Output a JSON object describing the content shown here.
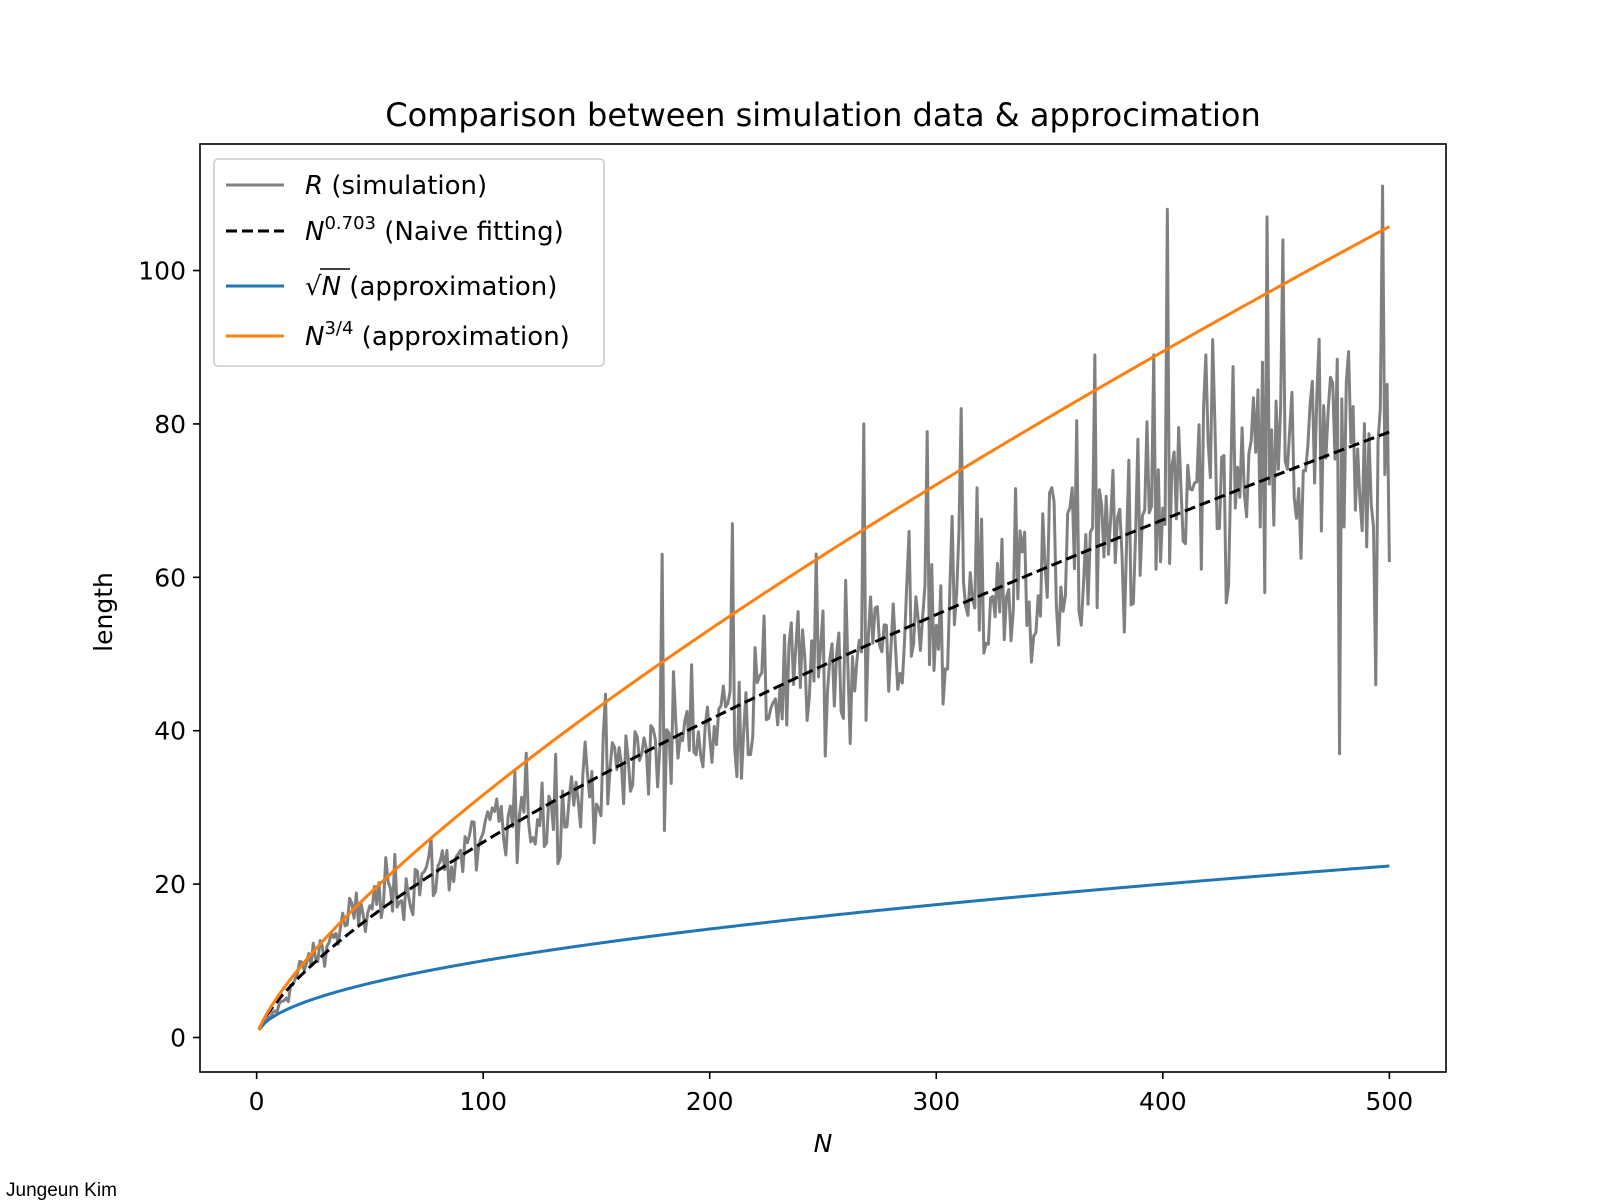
{
  "chart_data": {
    "type": "line",
    "title": "Comparison between simulation data & approcimation",
    "xlabel": "N",
    "ylabel": "length",
    "xlim": [
      -25,
      525
    ],
    "ylim": [
      -4.5,
      116.5
    ],
    "xticks": [
      0,
      100,
      200,
      300,
      400,
      500
    ],
    "yticks": [
      0,
      20,
      40,
      60,
      80,
      100
    ],
    "xtick_labels": [
      "0",
      "100",
      "200",
      "300",
      "400",
      "500"
    ],
    "ytick_labels": [
      "0",
      "20",
      "40",
      "60",
      "80",
      "100"
    ],
    "grid": false,
    "legend_position": "upper-left",
    "series": [
      {
        "name": "R (simulation)",
        "legend_label": {
          "symbol": "R",
          "rest": " (simulation)"
        },
        "style": "solid",
        "color": "#808080",
        "n_range": [
          1,
          500
        ],
        "noisy": true,
        "anchor_points": [
          {
            "x": 1,
            "y": 1
          },
          {
            "x": 10,
            "y": 4
          },
          {
            "x": 20,
            "y": 9
          },
          {
            "x": 40,
            "y": 15
          },
          {
            "x": 60,
            "y": 19
          },
          {
            "x": 80,
            "y": 22
          },
          {
            "x": 100,
            "y": 26
          },
          {
            "x": 120,
            "y": 29
          },
          {
            "x": 140,
            "y": 32
          },
          {
            "x": 160,
            "y": 35
          },
          {
            "x": 180,
            "y": 38
          },
          {
            "x": 200,
            "y": 41
          },
          {
            "x": 220,
            "y": 44
          },
          {
            "x": 240,
            "y": 47
          },
          {
            "x": 260,
            "y": 50
          },
          {
            "x": 280,
            "y": 52
          },
          {
            "x": 300,
            "y": 55
          },
          {
            "x": 320,
            "y": 57
          },
          {
            "x": 340,
            "y": 60
          },
          {
            "x": 360,
            "y": 62
          },
          {
            "x": 380,
            "y": 65
          },
          {
            "x": 400,
            "y": 67
          },
          {
            "x": 420,
            "y": 70
          },
          {
            "x": 440,
            "y": 72
          },
          {
            "x": 460,
            "y": 74
          },
          {
            "x": 480,
            "y": 77
          },
          {
            "x": 500,
            "y": 79
          }
        ],
        "highlights": [
          {
            "x": 179,
            "y": 63
          },
          {
            "x": 210,
            "y": 67
          },
          {
            "x": 268,
            "y": 80
          },
          {
            "x": 296,
            "y": 79
          },
          {
            "x": 311,
            "y": 82
          },
          {
            "x": 370,
            "y": 89
          },
          {
            "x": 396,
            "y": 89
          },
          {
            "x": 402,
            "y": 108
          },
          {
            "x": 422,
            "y": 91
          },
          {
            "x": 446,
            "y": 107
          },
          {
            "x": 453,
            "y": 104
          },
          {
            "x": 478,
            "y": 37
          },
          {
            "x": 494,
            "y": 46
          },
          {
            "x": 497,
            "y": 111
          },
          {
            "x": 500,
            "y": 62
          }
        ]
      },
      {
        "name": "N^0.703 (Naive fitting)",
        "legend_label": {
          "symbol": "N",
          "sup": "0.703",
          "rest": " (Naive fitting)"
        },
        "style": "dashed",
        "color": "#000000",
        "exponent": 0.703,
        "n_range": [
          1,
          500
        ]
      },
      {
        "name": "√N (approximation)",
        "legend_label": {
          "symbol": "N",
          "sqrt": true,
          "rest": " (approximation)"
        },
        "style": "solid",
        "color": "#1f77b4",
        "exponent": 0.5,
        "n_range": [
          1,
          500
        ]
      },
      {
        "name": "N^3/4 (approximation)",
        "legend_label": {
          "symbol": "N",
          "sup": "3/4",
          "rest": " (approximation)"
        },
        "style": "solid",
        "color": "#ff7f0e",
        "exponent": 0.75,
        "n_range": [
          1,
          500
        ]
      }
    ]
  },
  "credit": "Jungeun Kim"
}
